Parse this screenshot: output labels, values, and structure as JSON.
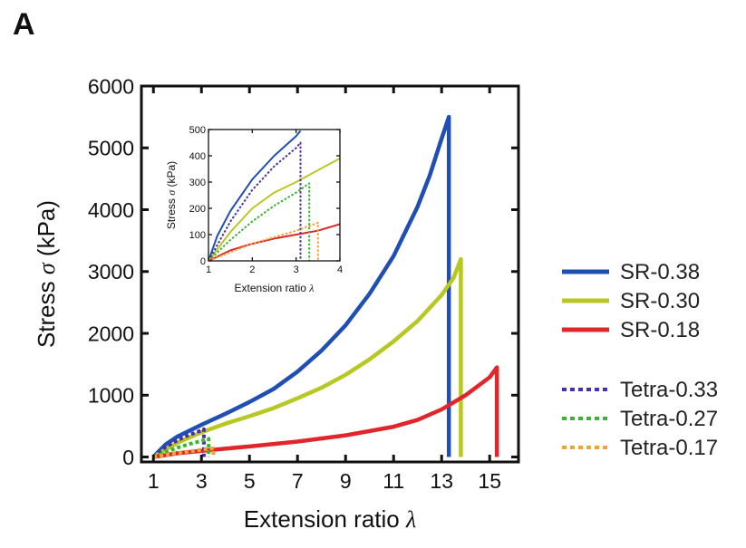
{
  "panel_label": "A",
  "chart_data": [
    {
      "type": "line",
      "title": "",
      "xlabel": "Extension ratio",
      "xlabel_symbol": "λ",
      "ylabel": "Stress",
      "ylabel_symbol": "σ",
      "ylabel_unit": "(kPa)",
      "xlim": [
        0.5,
        16.2
      ],
      "ylim": [
        -80,
        6000
      ],
      "xticks": [
        1,
        3,
        5,
        7,
        9,
        11,
        13,
        15
      ],
      "yticks": [
        0,
        1000,
        2000,
        3000,
        4000,
        5000,
        6000
      ],
      "grid": false,
      "legend_position": "right, outside plot",
      "series": [
        {
          "name": "SR-0.38",
          "color": "#1f4fb3",
          "dash": "solid",
          "x": [
            1,
            1.5,
            2,
            3,
            4,
            5,
            6,
            7,
            8,
            9,
            10,
            11,
            12,
            12.5,
            13,
            13.3,
            13.3
          ],
          "y": [
            0,
            200,
            330,
            520,
            700,
            890,
            1100,
            1380,
            1720,
            2130,
            2640,
            3250,
            4050,
            4550,
            5150,
            5500,
            0
          ]
        },
        {
          "name": "SR-0.30",
          "color": "#b8c823",
          "dash": "solid",
          "x": [
            1,
            1.5,
            2,
            3,
            4,
            5,
            6,
            7,
            8,
            9,
            10,
            11,
            12,
            13,
            13.5,
            13.8,
            13.8
          ],
          "y": [
            0,
            120,
            230,
            400,
            540,
            660,
            790,
            950,
            1120,
            1330,
            1580,
            1870,
            2200,
            2620,
            2900,
            3200,
            0
          ]
        },
        {
          "name": "SR-0.18",
          "color": "#e0262b",
          "dash": "solid",
          "x": [
            1,
            2,
            3,
            5,
            7,
            9,
            11,
            12,
            13,
            14,
            15,
            15.3,
            15.3
          ],
          "y": [
            0,
            60,
            100,
            170,
            250,
            350,
            490,
            600,
            770,
            1000,
            1290,
            1450,
            0
          ]
        },
        {
          "name": "Tetra-0.33",
          "color": "#4a2fa8",
          "dash": "dotted",
          "x": [
            1,
            1.5,
            2,
            2.5,
            3,
            3.1,
            3.1
          ],
          "y": [
            0,
            160,
            270,
            360,
            430,
            450,
            0
          ]
        },
        {
          "name": "Tetra-0.27",
          "color": "#37b533",
          "dash": "dotted",
          "x": [
            1,
            1.5,
            2,
            2.5,
            3,
            3.3,
            3.3
          ],
          "y": [
            0,
            80,
            150,
            210,
            260,
            295,
            0
          ]
        },
        {
          "name": "Tetra-0.17",
          "color": "#f0a23a",
          "dash": "dotted",
          "x": [
            1,
            2,
            3,
            3.5,
            3.5
          ],
          "y": [
            0,
            65,
            115,
            140,
            0
          ]
        }
      ]
    },
    {
      "type": "line",
      "title": "",
      "xlabel": "Extension ratio",
      "xlabel_symbol": "λ",
      "ylabel": "Stress",
      "ylabel_symbol": "σ",
      "ylabel_unit": "(kPa)",
      "xlim": [
        1,
        4
      ],
      "ylim": [
        0,
        500
      ],
      "xticks": [
        1,
        2,
        3,
        4
      ],
      "yticks": [
        0,
        100,
        200,
        300,
        400,
        500
      ],
      "grid": false,
      "legend_position": "none",
      "series": [
        {
          "name": "SR-0.38",
          "color": "#1f4fb3",
          "dash": "solid",
          "x": [
            1,
            1.2,
            1.5,
            2,
            2.5,
            3.0,
            3.1
          ],
          "y": [
            0,
            95,
            190,
            310,
            400,
            475,
            495
          ]
        },
        {
          "name": "SR-0.30",
          "color": "#b8c823",
          "dash": "solid",
          "x": [
            1,
            1.5,
            2,
            2.5,
            3,
            3.5,
            4
          ],
          "y": [
            0,
            110,
            200,
            260,
            300,
            345,
            390
          ]
        },
        {
          "name": "SR-0.18",
          "color": "#e0262b",
          "dash": "solid",
          "x": [
            1,
            1.5,
            2,
            2.5,
            3,
            3.5,
            4
          ],
          "y": [
            0,
            40,
            65,
            85,
            100,
            115,
            140
          ]
        },
        {
          "name": "Tetra-0.33",
          "color": "#4a2fa8",
          "dash": "dotted",
          "x": [
            1,
            1.5,
            2,
            2.5,
            3,
            3.1,
            3.1
          ],
          "y": [
            0,
            150,
            270,
            360,
            430,
            450,
            0
          ]
        },
        {
          "name": "Tetra-0.27",
          "color": "#37b533",
          "dash": "dotted",
          "x": [
            1,
            1.5,
            2,
            2.5,
            3,
            3.3,
            3.3
          ],
          "y": [
            0,
            80,
            150,
            210,
            260,
            295,
            0
          ]
        },
        {
          "name": "Tetra-0.17",
          "color": "#f0a23a",
          "dash": "dotted",
          "x": [
            1,
            2,
            3,
            3.5,
            3.5
          ],
          "y": [
            0,
            65,
            115,
            145,
            0
          ]
        }
      ]
    }
  ]
}
